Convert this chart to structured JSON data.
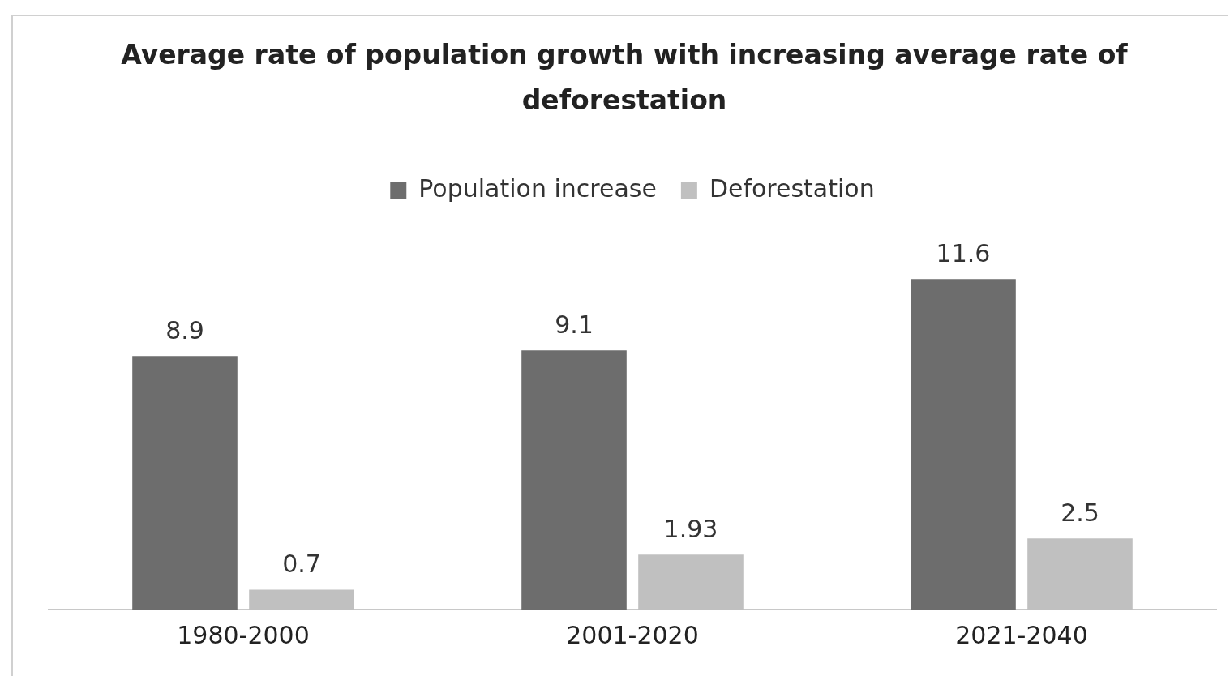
{
  "chart_data": {
    "type": "bar",
    "title": "Average rate of population growth with increasing average rate of deforestation",
    "categories": [
      "1980-2000",
      "2001-2020",
      "2021-2040"
    ],
    "series": [
      {
        "name": "Population increase",
        "color": "#6d6d6d",
        "values": [
          8.9,
          9.1,
          11.6
        ]
      },
      {
        "name": "Deforestation",
        "color": "#c0c0c0",
        "values": [
          0.7,
          1.93,
          2.5
        ]
      }
    ],
    "data_labels": true,
    "legend": "top",
    "grid": false
  }
}
